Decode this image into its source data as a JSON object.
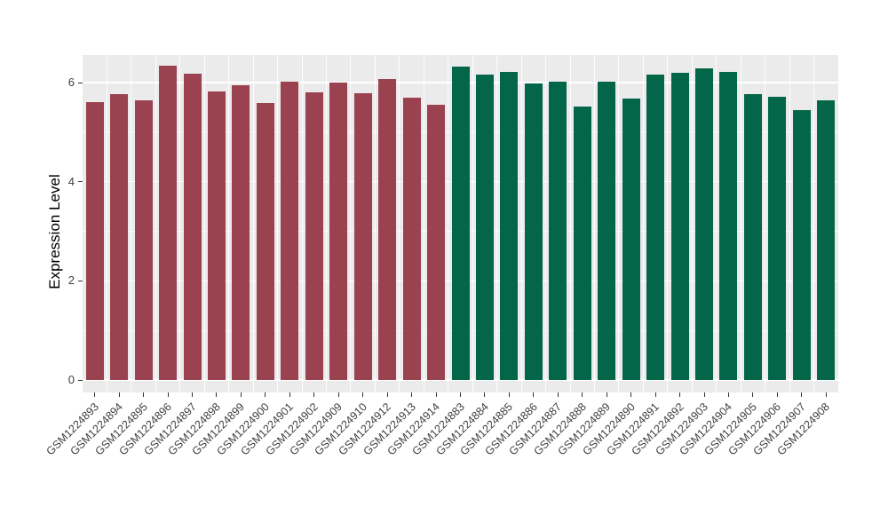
{
  "chart_data": {
    "type": "bar",
    "title": "",
    "xlabel": "",
    "ylabel": "Expression Level",
    "ylim": [
      0,
      6.8
    ],
    "yticks_major": [
      0,
      2,
      4,
      6
    ],
    "yticks_minor": [
      1,
      3,
      5
    ],
    "grid": "on",
    "legend": "none",
    "groups": [
      {
        "name": "group-1-red",
        "color": "#9A4250"
      },
      {
        "name": "group-2-green",
        "color": "#036648"
      }
    ],
    "bars": [
      {
        "label": "GSM1224893",
        "value": 5.61,
        "group": 0
      },
      {
        "label": "GSM1224894",
        "value": 5.76,
        "group": 0
      },
      {
        "label": "GSM1224895",
        "value": 5.65,
        "group": 0
      },
      {
        "label": "GSM1224896",
        "value": 6.34,
        "group": 0
      },
      {
        "label": "GSM1224897",
        "value": 6.18,
        "group": 0
      },
      {
        "label": "GSM1224898",
        "value": 5.82,
        "group": 0
      },
      {
        "label": "GSM1224899",
        "value": 5.94,
        "group": 0
      },
      {
        "label": "GSM1224900",
        "value": 5.58,
        "group": 0
      },
      {
        "label": "GSM1224901",
        "value": 6.02,
        "group": 0
      },
      {
        "label": "GSM1224902",
        "value": 5.8,
        "group": 0
      },
      {
        "label": "GSM1224909",
        "value": 6.0,
        "group": 0
      },
      {
        "label": "GSM1224910",
        "value": 5.78,
        "group": 0
      },
      {
        "label": "GSM1224912",
        "value": 6.07,
        "group": 0
      },
      {
        "label": "GSM1224913",
        "value": 5.69,
        "group": 0
      },
      {
        "label": "GSM1224914",
        "value": 5.56,
        "group": 0
      },
      {
        "label": "GSM1224883",
        "value": 6.33,
        "group": 1
      },
      {
        "label": "GSM1224884",
        "value": 6.16,
        "group": 1
      },
      {
        "label": "GSM1224885",
        "value": 6.21,
        "group": 1
      },
      {
        "label": "GSM1224886",
        "value": 5.99,
        "group": 1
      },
      {
        "label": "GSM1224887",
        "value": 6.01,
        "group": 1
      },
      {
        "label": "GSM1224888",
        "value": 5.51,
        "group": 1
      },
      {
        "label": "GSM1224889",
        "value": 6.01,
        "group": 1
      },
      {
        "label": "GSM1224890",
        "value": 5.68,
        "group": 1
      },
      {
        "label": "GSM1224891",
        "value": 6.17,
        "group": 1
      },
      {
        "label": "GSM1224892",
        "value": 6.2,
        "group": 1
      },
      {
        "label": "GSM1224903",
        "value": 6.28,
        "group": 1
      },
      {
        "label": "GSM1224904",
        "value": 6.22,
        "group": 1
      },
      {
        "label": "GSM1224905",
        "value": 5.76,
        "group": 1
      },
      {
        "label": "GSM1224906",
        "value": 5.71,
        "group": 1
      },
      {
        "label": "GSM1224907",
        "value": 5.45,
        "group": 1
      },
      {
        "label": "GSM1224908",
        "value": 5.64,
        "group": 1
      }
    ]
  },
  "style": {
    "figure_background": "#FFFFFF",
    "panel_background": "#EBEBEB",
    "grid_major_color": "#FFFFFF",
    "grid_minor_color": "rgba(255,255,255,0.65)",
    "axis_text_color": "#404040",
    "axis_title_color": "#000000",
    "tick_mark_color": "#333333"
  }
}
